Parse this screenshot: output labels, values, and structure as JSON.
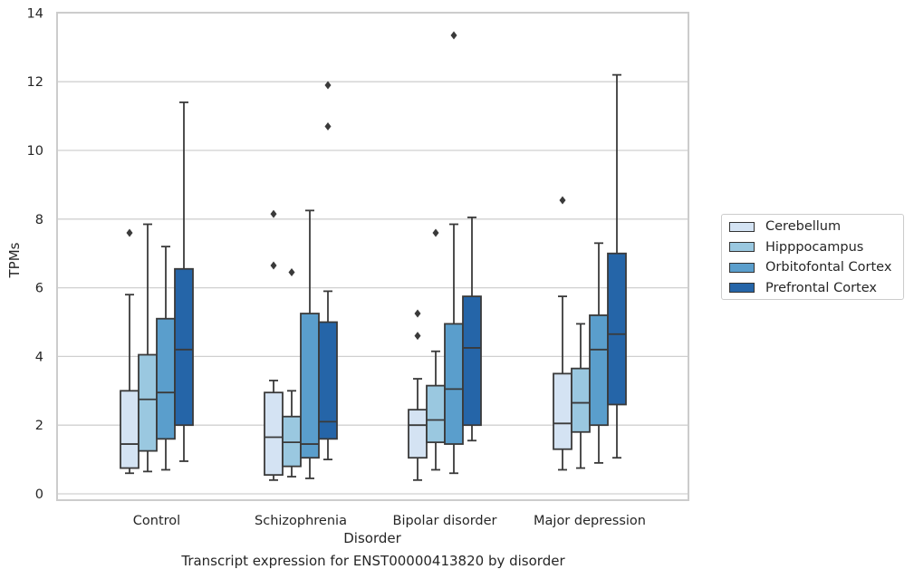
{
  "chart_data": {
    "type": "box",
    "xlabel": "Disorder",
    "ylabel": "TPMs",
    "ylim": [
      0,
      14
    ],
    "yticks": [
      0,
      2,
      4,
      6,
      8,
      10,
      12,
      14
    ],
    "grid": "horizontal",
    "legend_placement": "right",
    "categories": [
      "Control",
      "Schizophrenia",
      "Bipolar disorder",
      "Major depression"
    ],
    "series": [
      {
        "name": "Cerebellum",
        "color": "#d4e3f3",
        "boxes": [
          {
            "whisker_low": 0.6,
            "q1": 0.75,
            "median": 1.45,
            "q3": 3.0,
            "whisker_high": 5.8,
            "outliers": [
              7.6
            ]
          },
          {
            "whisker_low": 0.4,
            "q1": 0.55,
            "median": 1.65,
            "q3": 2.95,
            "whisker_high": 3.3,
            "outliers": [
              6.65,
              8.15
            ]
          },
          {
            "whisker_low": 0.4,
            "q1": 1.05,
            "median": 2.0,
            "q3": 2.45,
            "whisker_high": 3.35,
            "outliers": [
              4.6,
              5.25
            ]
          },
          {
            "whisker_low": 0.7,
            "q1": 1.3,
            "median": 2.05,
            "q3": 3.5,
            "whisker_high": 5.75,
            "outliers": [
              8.55
            ]
          }
        ]
      },
      {
        "name": "Hipppocampus",
        "color": "#9ac8e0",
        "boxes": [
          {
            "whisker_low": 0.65,
            "q1": 1.25,
            "median": 2.75,
            "q3": 4.05,
            "whisker_high": 7.85,
            "outliers": []
          },
          {
            "whisker_low": 0.5,
            "q1": 0.8,
            "median": 1.5,
            "q3": 2.25,
            "whisker_high": 3.0,
            "outliers": [
              6.45
            ]
          },
          {
            "whisker_low": 0.7,
            "q1": 1.5,
            "median": 2.15,
            "q3": 3.15,
            "whisker_high": 4.15,
            "outliers": [
              7.6
            ]
          },
          {
            "whisker_low": 0.75,
            "q1": 1.8,
            "median": 2.65,
            "q3": 3.65,
            "whisker_high": 4.95,
            "outliers": []
          }
        ]
      },
      {
        "name": "Orbitofontal Cortex",
        "color": "#5a9ecc",
        "boxes": [
          {
            "whisker_low": 0.7,
            "q1": 1.6,
            "median": 2.95,
            "q3": 5.1,
            "whisker_high": 7.2,
            "outliers": []
          },
          {
            "whisker_low": 0.45,
            "q1": 1.05,
            "median": 1.45,
            "q3": 5.25,
            "whisker_high": 8.25,
            "outliers": []
          },
          {
            "whisker_low": 0.6,
            "q1": 1.45,
            "median": 3.05,
            "q3": 4.95,
            "whisker_high": 7.85,
            "outliers": [
              13.35
            ]
          },
          {
            "whisker_low": 0.9,
            "q1": 2.0,
            "median": 4.2,
            "q3": 5.2,
            "whisker_high": 7.3,
            "outliers": []
          }
        ]
      },
      {
        "name": "Prefrontal Cortex",
        "color": "#2565a8",
        "boxes": [
          {
            "whisker_low": 0.95,
            "q1": 2.0,
            "median": 4.2,
            "q3": 6.55,
            "whisker_high": 11.4,
            "outliers": []
          },
          {
            "whisker_low": 1.0,
            "q1": 1.6,
            "median": 2.1,
            "q3": 5.0,
            "whisker_high": 5.9,
            "outliers": [
              10.7,
              11.9
            ]
          },
          {
            "whisker_low": 1.55,
            "q1": 2.0,
            "median": 4.25,
            "q3": 5.75,
            "whisker_high": 8.05,
            "outliers": []
          },
          {
            "whisker_low": 1.05,
            "q1": 2.6,
            "median": 4.65,
            "q3": 7.0,
            "whisker_high": 12.2,
            "outliers": []
          }
        ]
      }
    ]
  },
  "caption": "Transcript expression for ENST00000413820 by disorder"
}
